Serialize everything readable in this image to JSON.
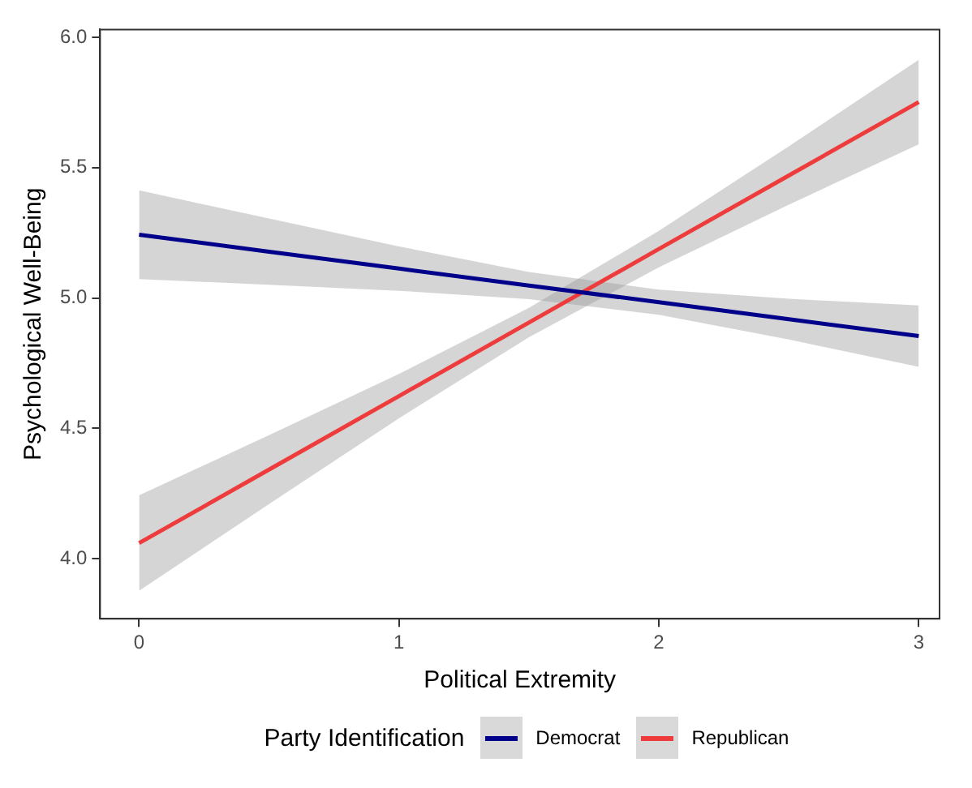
{
  "chart_data": {
    "type": "line",
    "xlabel": "Political Extremity",
    "ylabel": "Psychological Well-Being",
    "legend_title": "Party Identification",
    "x": [
      0,
      0.5,
      1,
      1.5,
      2,
      2.5,
      3
    ],
    "xlim": [
      -0.15,
      3.08
    ],
    "xticks": [
      0,
      1,
      2,
      3
    ],
    "ylim": [
      3.77,
      6.03
    ],
    "yticks": [
      {
        "value": 4,
        "label": "4.0"
      },
      4.5,
      {
        "value": 5,
        "label": "5.0"
      },
      5.5,
      {
        "value": 6,
        "label": "6.0"
      }
    ],
    "grid": false,
    "legend": "bottom",
    "marker": "none",
    "line_style": "solid",
    "series": [
      {
        "name": "Democrat",
        "color": "#00008b",
        "values": [
          5.243,
          5.178,
          5.113,
          5.048,
          4.984,
          4.919,
          4.854
        ],
        "lower": [
          5.073,
          5.051,
          5.028,
          4.996,
          4.936,
          4.841,
          4.736
        ],
        "upper": [
          5.413,
          5.305,
          5.198,
          5.1,
          5.032,
          4.997,
          4.972
        ]
      },
      {
        "name": "Republican",
        "color": "#ee3b3b",
        "values": [
          4.06,
          4.342,
          4.624,
          4.906,
          5.188,
          5.47,
          5.752
        ],
        "lower": [
          3.877,
          4.21,
          4.539,
          4.85,
          5.118,
          5.358,
          5.59
        ],
        "upper": [
          4.243,
          4.474,
          4.709,
          4.962,
          5.258,
          5.582,
          5.914
        ]
      }
    ]
  }
}
